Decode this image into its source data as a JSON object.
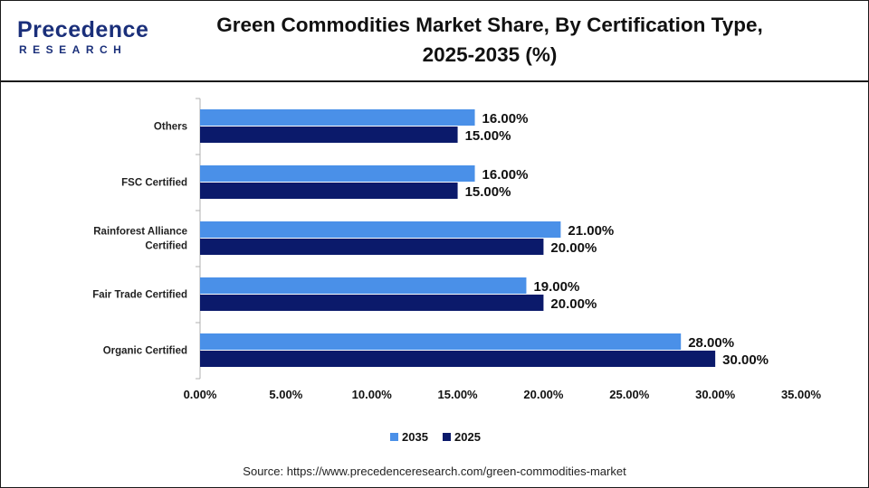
{
  "brand": {
    "name": "Precedence",
    "tagline": "RESEARCH"
  },
  "colors": {
    "series_2035": "#4a90e8",
    "series_2025": "#0b1a6b",
    "brand": "#1a2f7a"
  },
  "source": "Source: https://www.precedenceresearch.com/green-commodities-market",
  "chart_data": {
    "type": "bar",
    "orientation": "horizontal",
    "title": "Green Commodities Market Share, By Certification Type, 2025-2035 (%)",
    "title_lines": [
      "Green Commodities Market Share, By Certification Type,",
      "2025-2035 (%)"
    ],
    "categories": [
      "Others",
      "FSC Certified",
      "Rainforest Alliance Certified",
      "Fair Trade Certified",
      "Organic Certified"
    ],
    "category_lines": [
      [
        "Others"
      ],
      [
        "FSC Certified"
      ],
      [
        "Rainforest Alliance",
        "Certified"
      ],
      [
        "Fair Trade Certified"
      ],
      [
        "Organic Certified"
      ]
    ],
    "series": [
      {
        "name": "2035",
        "values": [
          16.0,
          16.0,
          21.0,
          19.0,
          28.0
        ],
        "labels": [
          "16.00%",
          "16.00%",
          "21.00%",
          "19.00%",
          "28.00%"
        ]
      },
      {
        "name": "2025",
        "values": [
          15.0,
          15.0,
          20.0,
          20.0,
          30.0
        ],
        "labels": [
          "15.00%",
          "15.00%",
          "20.00%",
          "20.00%",
          "30.00%"
        ]
      }
    ],
    "xlim": [
      0,
      35
    ],
    "xticks": [
      0,
      5,
      10,
      15,
      20,
      25,
      30,
      35
    ],
    "xtick_labels": [
      "0.00%",
      "5.00%",
      "10.00%",
      "15.00%",
      "20.00%",
      "25.00%",
      "30.00%",
      "35.00%"
    ],
    "grid": false,
    "legend": "bottom"
  }
}
